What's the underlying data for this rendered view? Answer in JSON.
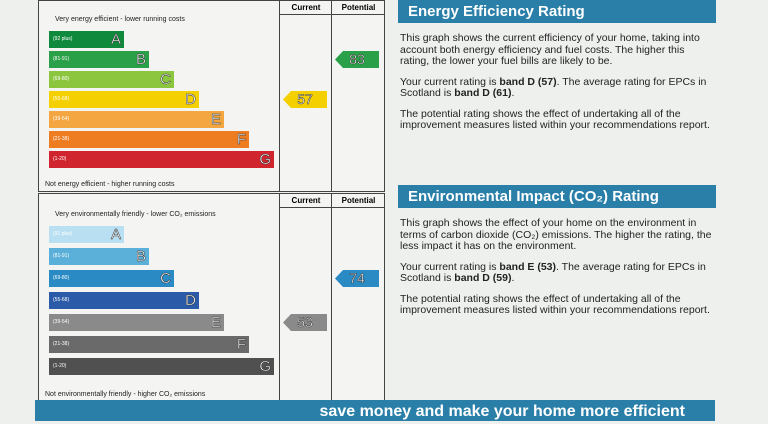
{
  "energy": {
    "chart": {
      "top_label": "Very energy efficient - lower running costs",
      "bottom_label": "Not energy efficient - higher running costs",
      "current_header": "Current",
      "potential_header": "Potential",
      "bands": [
        {
          "range": "(92 plus)",
          "letter": "A"
        },
        {
          "range": "(81-91)",
          "letter": "B"
        },
        {
          "range": "(69-80)",
          "letter": "C"
        },
        {
          "range": "(55-68)",
          "letter": "D"
        },
        {
          "range": "(39-54)",
          "letter": "E"
        },
        {
          "range": "(21-38)",
          "letter": "F"
        },
        {
          "range": "(1-20)",
          "letter": "G"
        }
      ],
      "current": "57",
      "potential": "83"
    },
    "title": "Energy Efficiency Rating",
    "paragraphs": [
      [
        "This graph shows the current efficiency of your home, taking into account both energy efficiency and fuel costs. The higher this rating, the lower your fuel bills are likely to be."
      ],
      [
        "Your current rating is ",
        "band D (57)",
        ". The average rating for EPCs in Scotland is ",
        "band D (61)",
        "."
      ],
      [
        "The potential rating shows the effect of undertaking all of the improvement measures listed within your recommendations report."
      ]
    ]
  },
  "environment": {
    "chart": {
      "top_label": "Very environmentally friendly - lower CO₂ emissions",
      "bottom_label": "Not environmentally friendly - higher CO₂ emissions",
      "current_header": "Current",
      "potential_header": "Potential",
      "bands": [
        {
          "range": "(92 plus)",
          "letter": "A"
        },
        {
          "range": "(81-91)",
          "letter": "B"
        },
        {
          "range": "(69-80)",
          "letter": "C"
        },
        {
          "range": "(55-68)",
          "letter": "D"
        },
        {
          "range": "(39-54)",
          "letter": "E"
        },
        {
          "range": "(21-38)",
          "letter": "F"
        },
        {
          "range": "(1-20)",
          "letter": "G"
        }
      ],
      "current": "53",
      "potential": "74"
    },
    "title": "Environmental Impact (CO₂) Rating",
    "paragraphs": [
      [
        "This graph shows the effect of your home on the environment in terms of carbon dioxide (CO₂) emissions. The higher the rating, the less impact it has on the environment."
      ],
      [
        "Your current rating is ",
        "band E (53)",
        ". The average rating for EPCs in Scotland is ",
        "band D (59)",
        "."
      ],
      [
        "The potential rating shows the effect of undertaking all of the improvement measures listed within your recommendations report."
      ]
    ]
  },
  "banner": "save money and make your home more efficient"
}
